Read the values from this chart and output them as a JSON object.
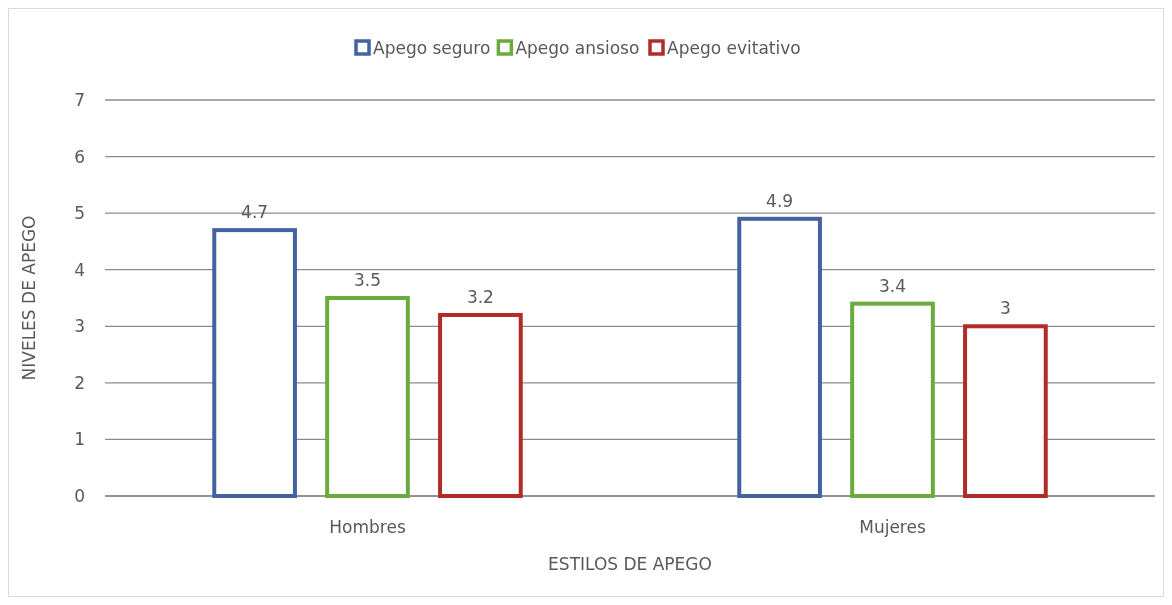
{
  "chart_data": {
    "type": "bar",
    "xlabel": "ESTILOS DE APEGO",
    "ylabel": "NIVELES DE APEGO",
    "categories": [
      "Hombres",
      "Mujeres"
    ],
    "series": [
      {
        "name": "Apego seguro",
        "color": "#44629f",
        "values": [
          4.7,
          4.9
        ]
      },
      {
        "name": "Apego ansioso",
        "color": "#6bab3e",
        "values": [
          3.5,
          3.4
        ]
      },
      {
        "name": "Apego evitativo",
        "color": "#b12b27",
        "values": [
          3.2,
          3
        ]
      }
    ],
    "ylim": [
      0,
      7
    ],
    "yticks": [
      0,
      1,
      2,
      3,
      4,
      5,
      6,
      7
    ],
    "grid": "y",
    "legend": "top",
    "data_labels": true
  }
}
